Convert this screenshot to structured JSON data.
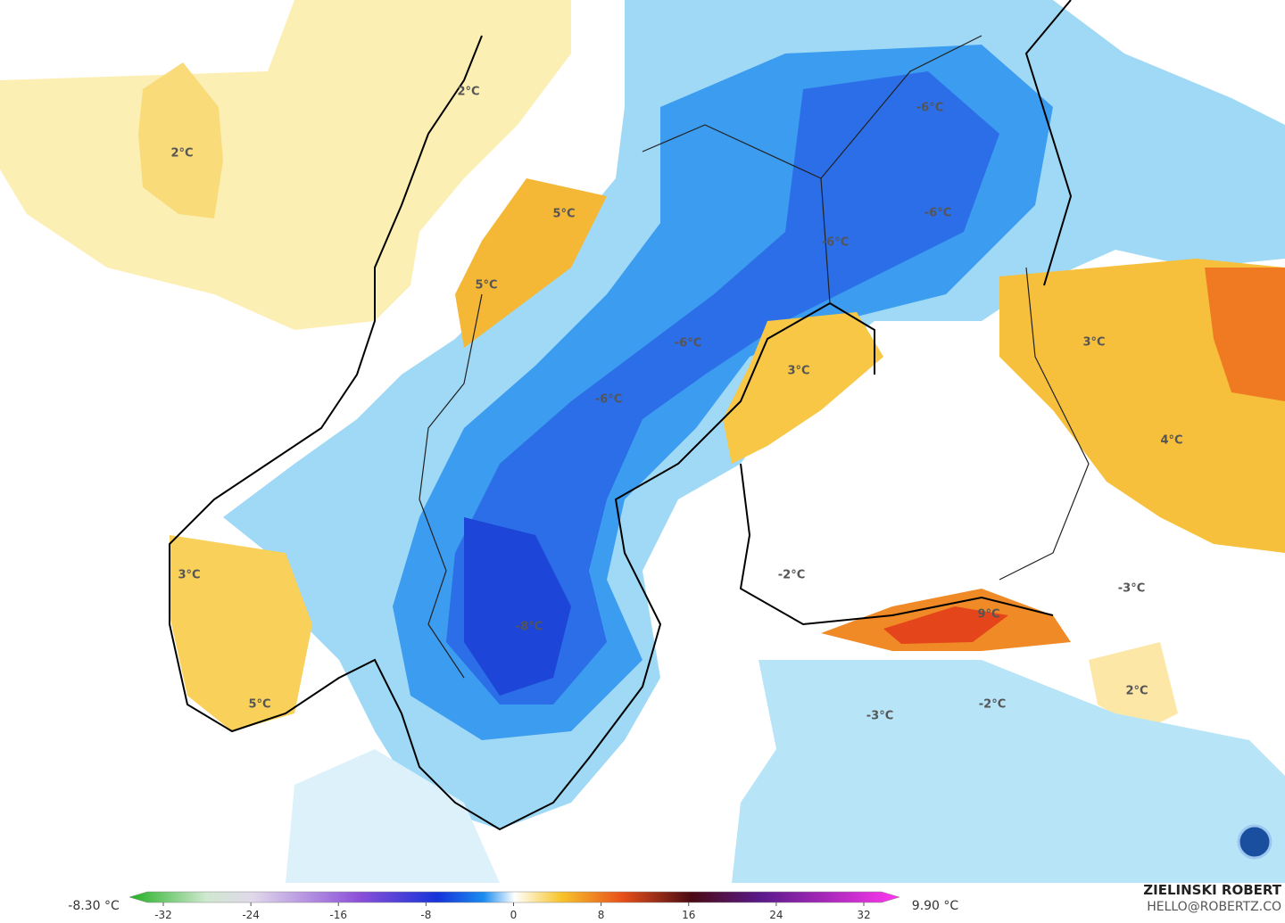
{
  "map": {
    "labels": [
      "2°C",
      "2°C",
      "5°C",
      "5°C",
      "-6°C",
      "-6°C",
      "-6°C",
      "-6°C",
      "-6°C",
      "3°C",
      "3°C",
      "4°C",
      "3°C",
      "-2°C",
      "-3°C",
      "-8°C",
      "9°C",
      "2°C",
      "-2°C",
      "-3°C",
      "5°C"
    ]
  },
  "colorbar": {
    "min_label": "-8.30 °C",
    "max_label": "9.90 °C",
    "ticks": [
      -32,
      -24,
      -16,
      -8,
      0,
      8,
      16,
      24,
      32
    ]
  },
  "credits": {
    "author": "ZIELINSKI ROBERT",
    "email": "HELLO@ROBERTZ.CO"
  }
}
